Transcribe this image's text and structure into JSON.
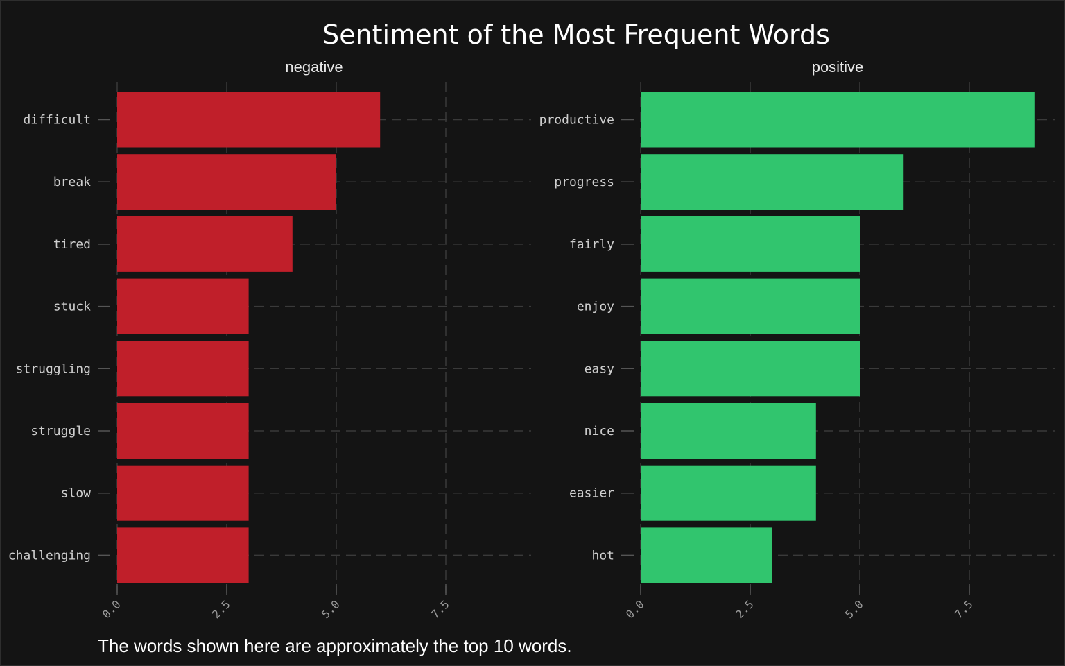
{
  "chart_data": {
    "type": "bar",
    "orientation": "horizontal",
    "title": "Sentiment of the Most Frequent Words",
    "caption": "The words shown here are approximately the top 10 words.",
    "xlabel": "",
    "ylabel": "",
    "grid": true,
    "facets": [
      {
        "label": "negative",
        "color": "#c01f2a",
        "categories": [
          "difficult",
          "break",
          "tired",
          "stuck",
          "struggling",
          "struggle",
          "slow",
          "challenging"
        ],
        "values": [
          6,
          5,
          4,
          3,
          3,
          3,
          3,
          3
        ],
        "xlim": [
          0,
          9.4
        ],
        "xticks": [
          0,
          2.5,
          5,
          7.5
        ],
        "xtick_labels": [
          "0.0",
          "2.5",
          "5.0",
          "7.5"
        ]
      },
      {
        "label": "positive",
        "color": "#31c56e",
        "categories": [
          "productive",
          "progress",
          "fairly",
          "enjoy",
          "easy",
          "nice",
          "easier",
          "hot"
        ],
        "values": [
          9,
          6,
          5,
          5,
          5,
          4,
          4,
          3
        ],
        "xlim": [
          0,
          9.4
        ],
        "xticks": [
          0,
          2.5,
          5,
          7.5
        ],
        "xtick_labels": [
          "0.0",
          "2.5",
          "5.0",
          "7.5"
        ]
      }
    ]
  }
}
